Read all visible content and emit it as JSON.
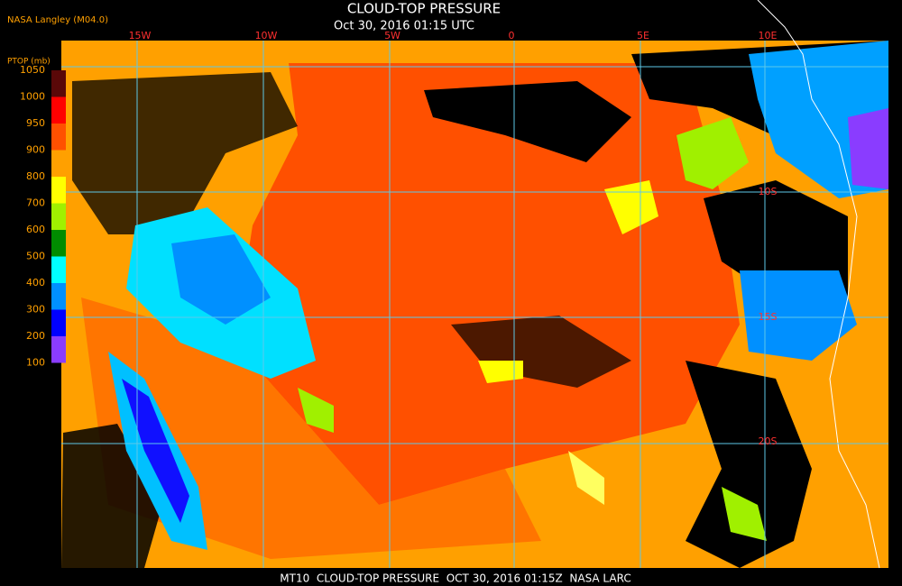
{
  "header": {
    "source": "NASA Langley (M04.0)",
    "title": "CLOUD-TOP PRESSURE",
    "subtitle": "Oct 30, 2016 01:15 UTC"
  },
  "legend": {
    "title": "PTOP (mb)",
    "ticks": [
      1050,
      1000,
      950,
      900,
      800,
      700,
      600,
      500,
      400,
      300,
      200,
      100
    ],
    "colors": [
      "#5a0808",
      "#ff0000",
      "#ff5000",
      "#ffa000",
      "#ffff00",
      "#a0f000",
      "#008c00",
      "#00ffff",
      "#0090ff",
      "#0000ff",
      "#8a3cff"
    ]
  },
  "grid": {
    "longitudes": [
      "15W",
      "10W",
      "5W",
      "0",
      "5E",
      "10E"
    ],
    "latitudes": [
      "10S",
      "15S",
      "20S"
    ]
  },
  "footer": "MT10  CLOUD-TOP PRESSURE  OCT 30, 2016 01:15Z  NASA LARC"
}
